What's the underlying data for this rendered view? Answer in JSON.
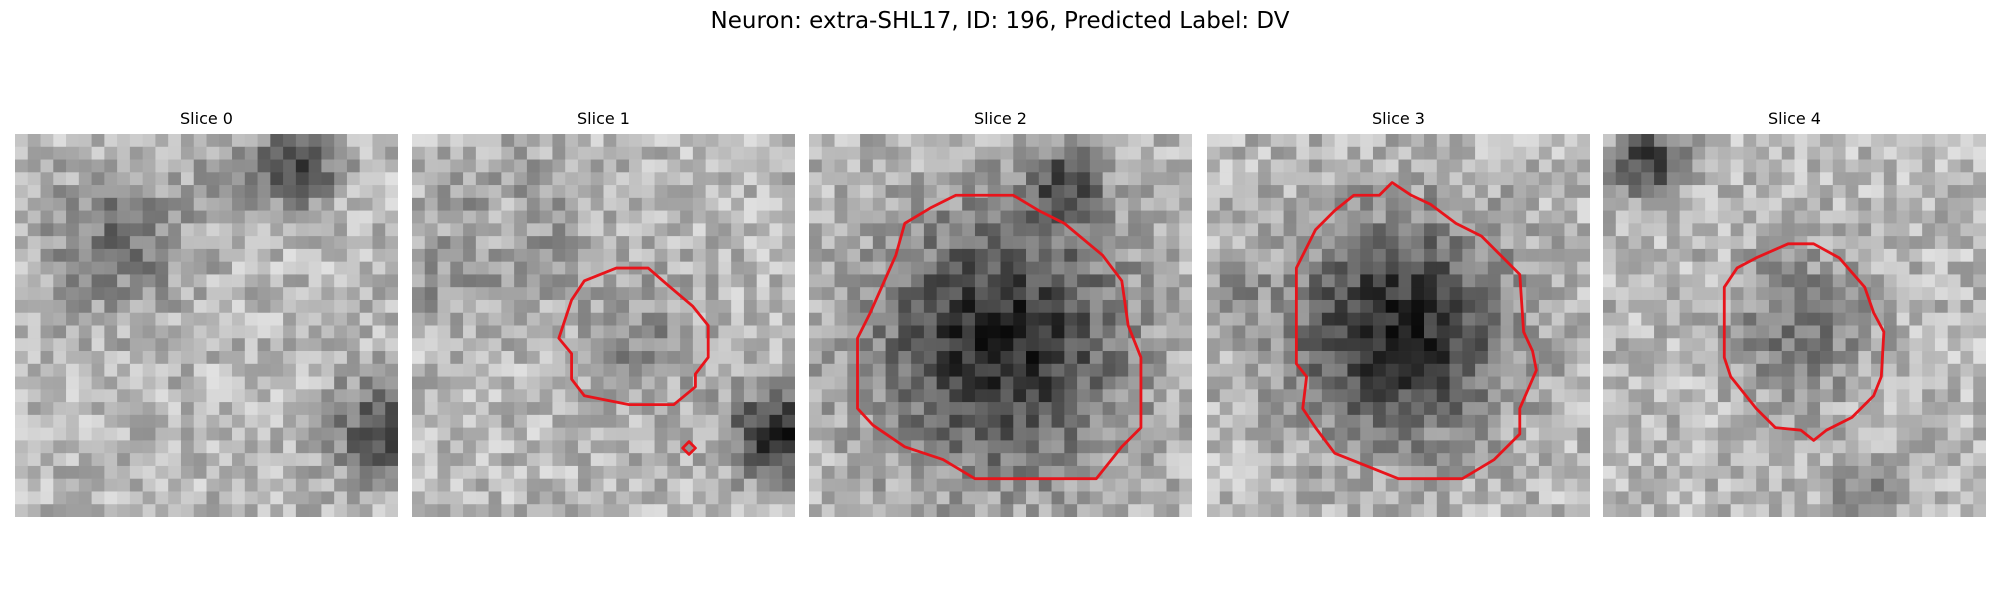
{
  "title": "Neuron: extra-SHL17, ID: 196, Predicted Label: DV",
  "panels": [
    {
      "title": "Slice 0"
    },
    {
      "title": "Slice 1"
    },
    {
      "title": "Slice 2"
    },
    {
      "title": "Slice 3"
    },
    {
      "title": "Slice 4"
    }
  ]
}
